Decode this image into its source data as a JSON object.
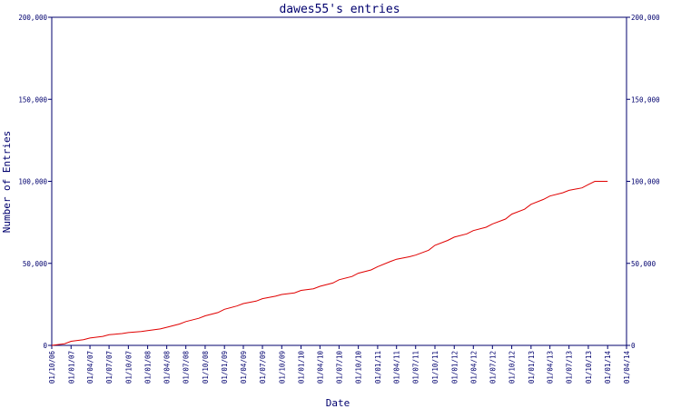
{
  "chart_data": {
    "type": "line",
    "title": "dawes55's entries",
    "xlabel": "Date",
    "ylabel": "Number of Entries",
    "ylim": [
      0,
      200000
    ],
    "y_ticks": [
      0,
      50000,
      100000,
      150000,
      200000
    ],
    "y_tick_labels": [
      "0",
      "50,000",
      "100,000",
      "150,000",
      "200,000"
    ],
    "right_axis_mirrors_left": true,
    "grid": false,
    "x_tick_labels": [
      "01/10/06",
      "01/01/07",
      "01/04/07",
      "01/07/07",
      "01/10/07",
      "01/01/08",
      "01/04/08",
      "01/07/08",
      "01/10/08",
      "01/01/09",
      "01/04/09",
      "01/07/09",
      "01/10/09",
      "01/01/10",
      "01/04/10",
      "01/07/10",
      "01/10/10",
      "01/01/11",
      "01/04/11",
      "01/07/11",
      "01/10/11",
      "01/01/12",
      "01/04/12",
      "01/07/12",
      "01/10/12",
      "01/01/13",
      "01/04/13",
      "01/07/13",
      "01/10/13",
      "01/01/14",
      "01/04/14"
    ],
    "series": [
      {
        "color": "#e00000",
        "points": [
          [
            "01/10/06",
            0
          ],
          [
            "01/12/06",
            1000
          ],
          [
            "01/01/07",
            2500
          ],
          [
            "01/03/07",
            3500
          ],
          [
            "01/04/07",
            4500
          ],
          [
            "01/06/07",
            5500
          ],
          [
            "01/07/07",
            6500
          ],
          [
            "01/09/07",
            7200
          ],
          [
            "01/10/07",
            7800
          ],
          [
            "01/12/07",
            8500
          ],
          [
            "01/01/08",
            9000
          ],
          [
            "01/03/08",
            10000
          ],
          [
            "01/04/08",
            11000
          ],
          [
            "01/06/08",
            13000
          ],
          [
            "01/07/08",
            14500
          ],
          [
            "01/09/08",
            16500
          ],
          [
            "01/10/08",
            18000
          ],
          [
            "01/12/08",
            20000
          ],
          [
            "01/01/09",
            22000
          ],
          [
            "01/03/09",
            24000
          ],
          [
            "01/04/09",
            25500
          ],
          [
            "01/06/09",
            27000
          ],
          [
            "01/07/09",
            28500
          ],
          [
            "01/09/09",
            30000
          ],
          [
            "01/10/09",
            31000
          ],
          [
            "01/12/09",
            32000
          ],
          [
            "01/01/10",
            33500
          ],
          [
            "01/03/10",
            34500
          ],
          [
            "01/04/10",
            36000
          ],
          [
            "01/06/10",
            38000
          ],
          [
            "01/07/10",
            40000
          ],
          [
            "01/09/10",
            42000
          ],
          [
            "01/10/10",
            44000
          ],
          [
            "01/12/10",
            46000
          ],
          [
            "01/01/11",
            48000
          ],
          [
            "01/03/11",
            51000
          ],
          [
            "01/04/11",
            52500
          ],
          [
            "01/06/11",
            54000
          ],
          [
            "01/07/11",
            55000
          ],
          [
            "01/09/11",
            58000
          ],
          [
            "01/10/11",
            61000
          ],
          [
            "01/12/11",
            64000
          ],
          [
            "01/01/12",
            66000
          ],
          [
            "01/03/12",
            68000
          ],
          [
            "01/04/12",
            70000
          ],
          [
            "01/06/12",
            72000
          ],
          [
            "01/07/12",
            74000
          ],
          [
            "01/09/12",
            77000
          ],
          [
            "01/10/12",
            80000
          ],
          [
            "01/12/12",
            83000
          ],
          [
            "01/01/13",
            86000
          ],
          [
            "01/03/13",
            89000
          ],
          [
            "01/04/13",
            91000
          ],
          [
            "01/06/13",
            93000
          ],
          [
            "01/07/13",
            94500
          ],
          [
            "01/09/13",
            96000
          ],
          [
            "01/10/13",
            98000
          ],
          [
            "01/11/13",
            100000
          ],
          [
            "01/12/13",
            100000
          ],
          [
            "01/01/14",
            100000
          ]
        ]
      }
    ]
  }
}
